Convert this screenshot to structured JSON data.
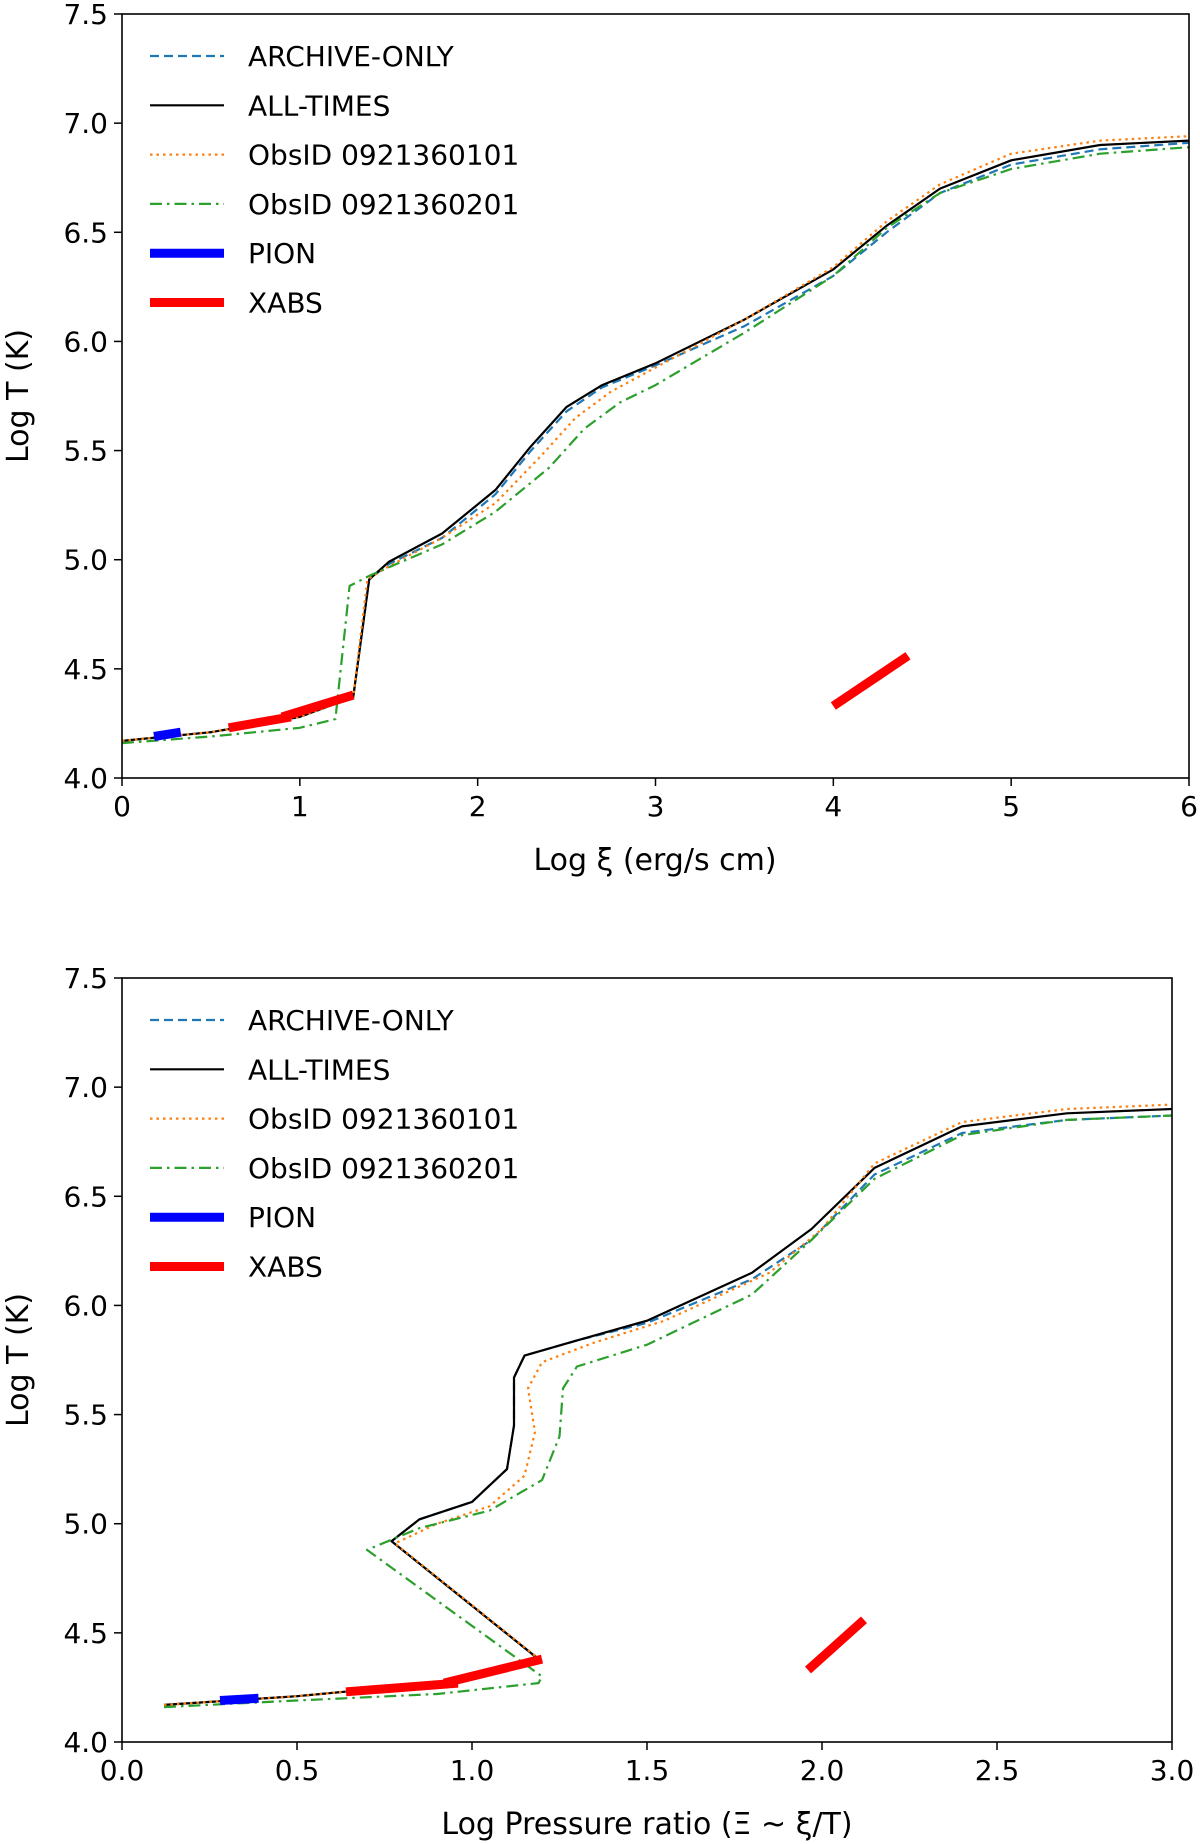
{
  "chart_data": [
    {
      "type": "line",
      "xlabel": "Log ξ (erg/s cm)",
      "ylabel": "Log T (K)",
      "xlim": [
        0,
        6
      ],
      "ylim": [
        4.0,
        7.5
      ],
      "xticks": [
        0,
        1,
        2,
        3,
        4,
        5,
        6
      ],
      "yticks": [
        4.0,
        4.5,
        5.0,
        5.5,
        6.0,
        6.5,
        7.0,
        7.5
      ],
      "xtick_labels": [
        "0",
        "1",
        "2",
        "3",
        "4",
        "5",
        "6"
      ],
      "ytick_labels": [
        "4.0",
        "4.5",
        "5.0",
        "5.5",
        "6.0",
        "6.5",
        "7.0",
        "7.5"
      ],
      "legend_position": "top-left",
      "series": [
        {
          "name": "ARCHIVE-ONLY",
          "style": "dashed",
          "color": "#1f77b4",
          "x": [
            0.0,
            0.5,
            1.0,
            1.3,
            1.39,
            1.5,
            1.8,
            2.1,
            2.3,
            2.5,
            2.7,
            3.0,
            3.5,
            4.0,
            4.3,
            4.6,
            5.0,
            5.5,
            6.0
          ],
          "y": [
            4.17,
            4.21,
            4.28,
            4.37,
            4.91,
            4.98,
            5.1,
            5.3,
            5.5,
            5.68,
            5.79,
            5.89,
            6.07,
            6.3,
            6.5,
            6.68,
            6.81,
            6.88,
            6.91
          ]
        },
        {
          "name": "ALL-TIMES",
          "style": "solid",
          "color": "#000000",
          "x": [
            0.0,
            0.5,
            1.0,
            1.3,
            1.39,
            1.5,
            1.8,
            2.1,
            2.3,
            2.5,
            2.7,
            3.0,
            3.5,
            4.0,
            4.3,
            4.6,
            5.0,
            5.5,
            6.0
          ],
          "y": [
            4.17,
            4.21,
            4.28,
            4.37,
            4.91,
            4.99,
            5.12,
            5.32,
            5.52,
            5.7,
            5.8,
            5.9,
            6.1,
            6.33,
            6.53,
            6.7,
            6.83,
            6.9,
            6.92
          ]
        },
        {
          "name": "ObsID 0921360101",
          "style": "dotted",
          "color": "#ff7f0e",
          "x": [
            0.0,
            0.5,
            1.0,
            1.3,
            1.38,
            1.5,
            1.8,
            2.1,
            2.35,
            2.55,
            2.75,
            3.0,
            3.5,
            4.0,
            4.3,
            4.6,
            5.0,
            5.5,
            6.0
          ],
          "y": [
            4.17,
            4.21,
            4.28,
            4.37,
            4.91,
            4.97,
            5.1,
            5.26,
            5.47,
            5.65,
            5.77,
            5.88,
            6.1,
            6.34,
            6.55,
            6.72,
            6.86,
            6.92,
            6.94
          ]
        },
        {
          "name": "ObsID 0921360201",
          "style": "dashdot",
          "color": "#2ca02c",
          "x": [
            0.0,
            0.5,
            1.0,
            1.2,
            1.28,
            1.4,
            1.8,
            2.1,
            2.4,
            2.6,
            2.8,
            3.0,
            3.5,
            4.0,
            4.3,
            4.6,
            5.0,
            5.5,
            6.0
          ],
          "y": [
            4.16,
            4.19,
            4.23,
            4.27,
            4.88,
            4.93,
            5.07,
            5.22,
            5.42,
            5.6,
            5.72,
            5.8,
            6.04,
            6.3,
            6.52,
            6.68,
            6.79,
            6.86,
            6.89
          ]
        },
        {
          "name": "PION",
          "style": "thick",
          "color": "#0000ff",
          "segments": [
            {
              "x": [
                0.18,
                0.33
              ],
              "y": [
                4.19,
                4.21
              ]
            }
          ]
        },
        {
          "name": "XABS",
          "style": "thick",
          "color": "#ff0000",
          "segments": [
            {
              "x": [
                0.6,
                0.95
              ],
              "y": [
                4.23,
                4.28
              ]
            },
            {
              "x": [
                0.9,
                1.3
              ],
              "y": [
                4.28,
                4.38
              ]
            },
            {
              "x": [
                4.0,
                4.42
              ],
              "y": [
                4.33,
                4.56
              ]
            }
          ]
        }
      ]
    },
    {
      "type": "line",
      "xlabel": "Log Pressure ratio (Ξ ~ ξ/T)",
      "ylabel": "Log T (K)",
      "xlim": [
        0.0,
        3.0
      ],
      "ylim": [
        4.0,
        7.5
      ],
      "xticks": [
        0.0,
        0.5,
        1.0,
        1.5,
        2.0,
        2.5,
        3.0
      ],
      "yticks": [
        4.0,
        4.5,
        5.0,
        5.5,
        6.0,
        6.5,
        7.0,
        7.5
      ],
      "xtick_labels": [
        "0.0",
        "0.5",
        "1.0",
        "1.5",
        "2.0",
        "2.5",
        "3.0"
      ],
      "ytick_labels": [
        "4.0",
        "4.5",
        "5.0",
        "5.5",
        "6.0",
        "6.5",
        "7.0",
        "7.5"
      ],
      "legend_position": "top-left",
      "series": [
        {
          "name": "ARCHIVE-ONLY",
          "style": "dashed",
          "color": "#1f77b4",
          "x": [
            0.12,
            0.5,
            0.9,
            1.19,
            0.77,
            0.85,
            1.0,
            1.1,
            1.12,
            1.12,
            1.15,
            1.3,
            1.5,
            1.8,
            1.97,
            2.15,
            2.4,
            2.7,
            3.0
          ],
          "y": [
            4.17,
            4.21,
            4.27,
            4.38,
            4.92,
            5.02,
            5.1,
            5.25,
            5.45,
            5.67,
            5.77,
            5.84,
            5.92,
            6.12,
            6.3,
            6.6,
            6.79,
            6.85,
            6.87
          ]
        },
        {
          "name": "ALL-TIMES",
          "style": "solid",
          "color": "#000000",
          "x": [
            0.12,
            0.5,
            0.9,
            1.19,
            0.77,
            0.85,
            1.0,
            1.1,
            1.12,
            1.12,
            1.15,
            1.3,
            1.5,
            1.8,
            1.97,
            2.15,
            2.4,
            2.7,
            3.0
          ],
          "y": [
            4.17,
            4.21,
            4.27,
            4.38,
            4.92,
            5.02,
            5.1,
            5.25,
            5.45,
            5.67,
            5.77,
            5.84,
            5.93,
            6.15,
            6.35,
            6.63,
            6.82,
            6.88,
            6.9
          ]
        },
        {
          "name": "ObsID 0921360101",
          "style": "dotted",
          "color": "#ff7f0e",
          "x": [
            0.12,
            0.5,
            0.9,
            1.2,
            0.78,
            0.9,
            1.05,
            1.15,
            1.18,
            1.16,
            1.2,
            1.35,
            1.55,
            1.85,
            2.0,
            2.15,
            2.4,
            2.7,
            3.0
          ],
          "y": [
            4.17,
            4.21,
            4.27,
            4.37,
            4.91,
            5.0,
            5.08,
            5.22,
            5.42,
            5.62,
            5.74,
            5.83,
            5.93,
            6.15,
            6.35,
            6.65,
            6.84,
            6.9,
            6.92
          ]
        },
        {
          "name": "ObsID 0921360201",
          "style": "dashdot",
          "color": "#2ca02c",
          "x": [
            0.12,
            0.5,
            0.9,
            1.19,
            1.2,
            0.7,
            0.85,
            1.05,
            1.2,
            1.25,
            1.26,
            1.3,
            1.5,
            1.8,
            1.97,
            2.15,
            2.4,
            2.7,
            3.0
          ],
          "y": [
            4.16,
            4.19,
            4.22,
            4.27,
            4.3,
            4.88,
            4.98,
            5.06,
            5.2,
            5.4,
            5.62,
            5.72,
            5.82,
            6.05,
            6.3,
            6.58,
            6.78,
            6.85,
            6.87
          ]
        },
        {
          "name": "PION",
          "style": "thick",
          "color": "#0000ff",
          "segments": [
            {
              "x": [
                0.28,
                0.39
              ],
              "y": [
                4.19,
                4.2
              ]
            }
          ]
        },
        {
          "name": "XABS",
          "style": "thick",
          "color": "#ff0000",
          "segments": [
            {
              "x": [
                0.64,
                0.96
              ],
              "y": [
                4.23,
                4.27
              ]
            },
            {
              "x": [
                0.92,
                1.2
              ],
              "y": [
                4.27,
                4.38
              ]
            },
            {
              "x": [
                1.96,
                2.12
              ],
              "y": [
                4.33,
                4.56
              ]
            }
          ]
        }
      ]
    }
  ]
}
